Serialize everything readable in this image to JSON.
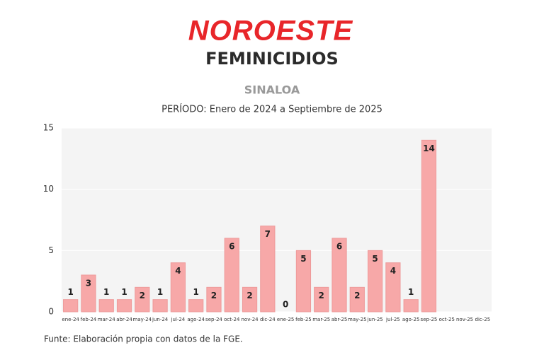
{
  "header": {
    "logo": "NOROESTE",
    "section": "FEMINICIDIOS"
  },
  "chart_data": {
    "type": "bar",
    "title": "SINALOA",
    "subtitle": "PERÍODO: Enero de 2024 a Septiembre de 2025",
    "source": "Funte: Elaboración propia con datos de la FGE.",
    "categories": [
      "ene-24",
      "feb-24",
      "mar-24",
      "abr-24",
      "may-24",
      "jun-24",
      "jul-24",
      "ago-24",
      "sep-24",
      "oct-24",
      "nov-24",
      "dic-24",
      "ene-25",
      "feb-25",
      "mar-25",
      "abr-25",
      "may-25",
      "jun-25",
      "jul-25",
      "ago-25",
      "sep-25",
      "oct-25",
      "nov-25",
      "dic-25"
    ],
    "values": [
      1,
      3,
      1,
      1,
      2,
      1,
      4,
      1,
      2,
      6,
      2,
      7,
      0,
      5,
      2,
      6,
      2,
      5,
      4,
      1,
      14,
      null,
      null,
      null
    ],
    "color": "#f7a8a8",
    "ylim": [
      0,
      15
    ],
    "yticks": [
      0,
      5,
      10,
      15
    ],
    "grid": true
  }
}
